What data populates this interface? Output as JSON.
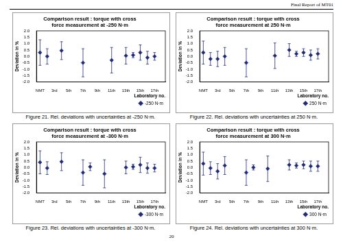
{
  "header": "Final Report of MT01",
  "page_number": "20",
  "chart_data": [
    {
      "type": "scatter",
      "title": [
        "Comparison result : torque with cross",
        "force measurement at -250 N·m"
      ],
      "caption": "Figure 21. Rel. deviations with uncertainties at -250 N·m.",
      "x_label": "Laboratory no.",
      "y_label": "Deviation in %",
      "categories": [
        "NMT",
        null,
        "3rd",
        null,
        "5th",
        null,
        "7th",
        null,
        "9th",
        null,
        "11th",
        null,
        "13th",
        null,
        "15th",
        null,
        "17th",
        null
      ],
      "series": [
        {
          "name": "-250 N·m",
          "color": "#1f2a7a",
          "marker": "diamond",
          "values": [
            0.3,
            0.0,
            null,
            0.45,
            null,
            null,
            -0.5,
            null,
            null,
            null,
            -0.3,
            null,
            0.05,
            0.1,
            0.3,
            -0.1,
            0.0,
            null
          ],
          "errors": [
            1.0,
            0.6,
            null,
            0.7,
            null,
            null,
            1.1,
            null,
            null,
            null,
            1.0,
            null,
            0.65,
            0.2,
            0.6,
            0.5,
            0.3,
            null
          ]
        }
      ],
      "ylim": [
        -2,
        2
      ],
      "yticks": [
        {
          "value": -2,
          "label": "-2.0"
        },
        {
          "value": -1.5,
          "label": "-1.5"
        },
        {
          "value": -1,
          "label": "-1.0"
        },
        {
          "value": -0.5,
          "label": "-0.5"
        },
        {
          "value": 0,
          "label": "0.0"
        },
        {
          "value": 0.5,
          "label": "0.5"
        },
        {
          "value": 1,
          "label": "1.0"
        },
        {
          "value": 1.5,
          "label": "1.5"
        },
        {
          "value": 2,
          "label": "2.0"
        }
      ],
      "grid": false,
      "legend": "lower right"
    },
    {
      "type": "scatter",
      "title": [
        "Comparison result : torque with cross",
        "force measurement at 250 N·m"
      ],
      "caption": "Figure 22. Rel. deviations with uncertainties at 250 N·m.",
      "x_label": "Laboratory no.",
      "y_label": "Deviation in %",
      "categories": [
        "NMT",
        null,
        "3rd",
        null,
        "5th",
        null,
        "7th",
        null,
        "9th",
        null,
        "11th",
        null,
        "13th",
        null,
        "15th",
        null,
        "17th",
        null
      ],
      "series": [
        {
          "name": "250 N·m",
          "color": "#1f2a7a",
          "marker": "diamond",
          "values": [
            0.3,
            -0.2,
            -0.2,
            0.0,
            null,
            null,
            -0.5,
            null,
            null,
            null,
            0.05,
            null,
            0.5,
            0.2,
            0.3,
            0.1,
            0.2,
            null
          ],
          "errors": [
            0.9,
            0.5,
            0.6,
            0.7,
            null,
            null,
            1.1,
            null,
            null,
            null,
            1.0,
            null,
            0.5,
            0.2,
            0.3,
            0.4,
            0.4,
            null
          ]
        }
      ],
      "ylim": [
        -2,
        2
      ],
      "yticks": [
        {
          "value": -2,
          "label": "-2.0"
        },
        {
          "value": -1.5,
          "label": "-1.5"
        },
        {
          "value": -1,
          "label": "-1.0"
        },
        {
          "value": -0.5,
          "label": "-0.5"
        },
        {
          "value": 0,
          "label": "0.0"
        },
        {
          "value": 0.5,
          "label": "0.5"
        },
        {
          "value": 1,
          "label": "1.0"
        },
        {
          "value": 1.5,
          "label": "1.5"
        },
        {
          "value": 2,
          "label": "2.0"
        }
      ],
      "grid": false,
      "legend": "lower right"
    },
    {
      "type": "scatter",
      "title": [
        "Comparison result : torque with cross",
        "force measurement at -300 N·m"
      ],
      "caption": "Figure 23. Rel. deviations with uncertainties at -300 N·m.",
      "x_label": "Laboratory no.",
      "y_label": "Deviation in %",
      "categories": [
        "NMT",
        null,
        "3rd",
        null,
        "5th",
        null,
        "7th",
        null,
        "9th",
        null,
        "11th",
        null,
        "13th",
        null,
        "15th",
        null,
        "17th",
        null
      ],
      "series": [
        {
          "name": "-300 N·m",
          "color": "#1f2a7a",
          "marker": "diamond",
          "values": [
            0.4,
            -0.05,
            null,
            0.45,
            null,
            null,
            -0.4,
            0.05,
            null,
            -0.5,
            null,
            null,
            0.0,
            0.05,
            0.2,
            -0.05,
            -0.05,
            null
          ],
          "errors": [
            0.9,
            0.5,
            null,
            0.7,
            null,
            null,
            1.0,
            0.3,
            null,
            1.1,
            null,
            null,
            0.5,
            0.2,
            0.6,
            0.4,
            0.3,
            null
          ]
        }
      ],
      "ylim": [
        -2,
        2
      ],
      "yticks": [
        {
          "value": -2,
          "label": "-2.0"
        },
        {
          "value": -1.5,
          "label": "-1.5"
        },
        {
          "value": -1,
          "label": "-1.0"
        },
        {
          "value": -0.5,
          "label": "-0.5"
        },
        {
          "value": 0,
          "label": "0.0"
        },
        {
          "value": 0.5,
          "label": "0.5"
        },
        {
          "value": 1,
          "label": "1.0"
        },
        {
          "value": 1.5,
          "label": "1.5"
        },
        {
          "value": 2,
          "label": "2.0"
        }
      ],
      "grid": false,
      "legend": "lower right"
    },
    {
      "type": "scatter",
      "title": [
        "Comparison result : torque with cross",
        "force measurement at 300 N·m"
      ],
      "caption": "Figure 24. Rel. deviations with uncertainties at 300 N·m.",
      "x_label": "Laboratory no.",
      "y_label": "Deviation in %",
      "categories": [
        "NMT",
        null,
        "3rd",
        null,
        "5th",
        null,
        "7th",
        null,
        "9th",
        null,
        "11th",
        null,
        "13th",
        null,
        "15th",
        null,
        "17th",
        null
      ],
      "series": [
        {
          "name": "300 N·m",
          "color": "#1f2a7a",
          "marker": "diamond",
          "values": [
            0.3,
            -0.05,
            -0.3,
            0.15,
            null,
            null,
            -0.4,
            0.0,
            null,
            -0.1,
            null,
            null,
            0.2,
            0.15,
            0.2,
            0.1,
            0.1,
            null
          ],
          "errors": [
            0.9,
            0.5,
            0.6,
            0.7,
            null,
            null,
            1.0,
            0.2,
            null,
            1.0,
            null,
            null,
            0.4,
            0.2,
            0.3,
            0.4,
            0.4,
            null
          ]
        }
      ],
      "ylim": [
        -2,
        2
      ],
      "yticks": [
        {
          "value": -2,
          "label": "-2.0"
        },
        {
          "value": -1.5,
          "label": "-1.5"
        },
        {
          "value": -1,
          "label": "-1.0"
        },
        {
          "value": -0.5,
          "label": "-0.5"
        },
        {
          "value": 0,
          "label": "0.0"
        },
        {
          "value": 0.5,
          "label": "0.5"
        },
        {
          "value": 1,
          "label": "1.0"
        },
        {
          "value": 1.5,
          "label": "1.5"
        },
        {
          "value": 2,
          "label": "2.0"
        }
      ],
      "grid": false,
      "legend": "lower right"
    }
  ]
}
